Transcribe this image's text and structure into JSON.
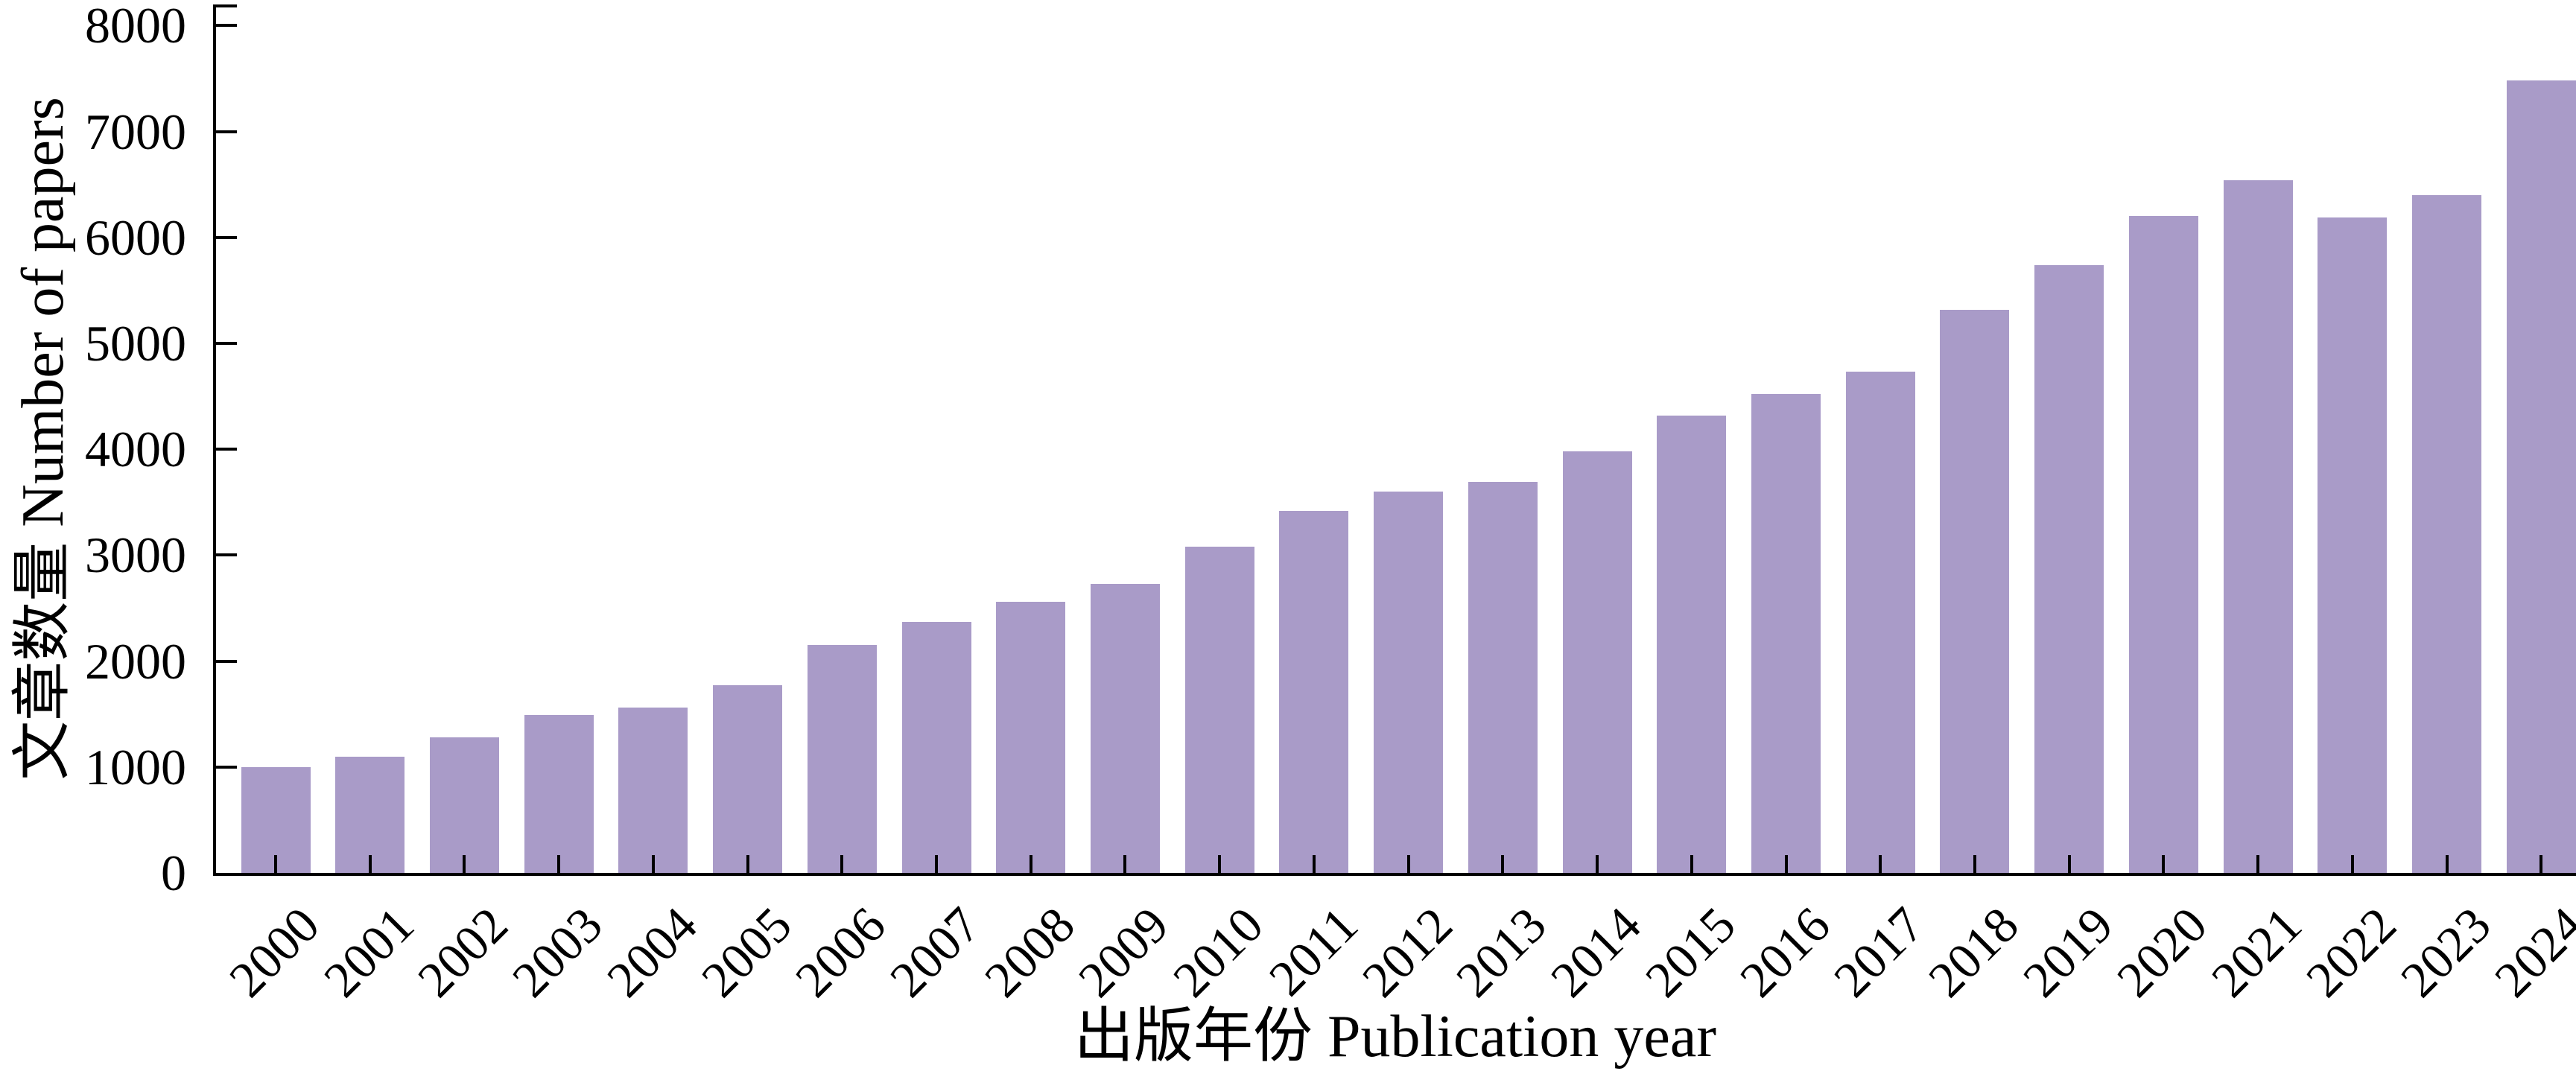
{
  "chart_data": {
    "type": "bar",
    "title": "",
    "xlabel": "出版年份 Publication year",
    "ylabel": "文章数量 Number of papers",
    "categories": [
      "2000",
      "2001",
      "2002",
      "2003",
      "2004",
      "2005",
      "2006",
      "2007",
      "2008",
      "2009",
      "2010",
      "2011",
      "2012",
      "2013",
      "2014",
      "2015",
      "2016",
      "2017",
      "2018",
      "2019",
      "2020",
      "2021",
      "2022",
      "2023",
      "2024"
    ],
    "values": [
      1000,
      1100,
      1280,
      1490,
      1560,
      1770,
      2150,
      2370,
      2560,
      2730,
      3080,
      3420,
      3600,
      3690,
      3980,
      4320,
      4520,
      4730,
      5320,
      5740,
      6200,
      6540,
      6190,
      6400,
      7480
    ],
    "yticks": [
      0,
      1000,
      2000,
      3000,
      4000,
      5000,
      6000,
      7000,
      8000
    ],
    "ylim": [
      0,
      8200
    ],
    "grid": false,
    "legend": "none",
    "bar_color": "#a99bc8",
    "axis_color": "#000000",
    "tick_direction": "in",
    "x_label_rotation_deg": 45
  }
}
